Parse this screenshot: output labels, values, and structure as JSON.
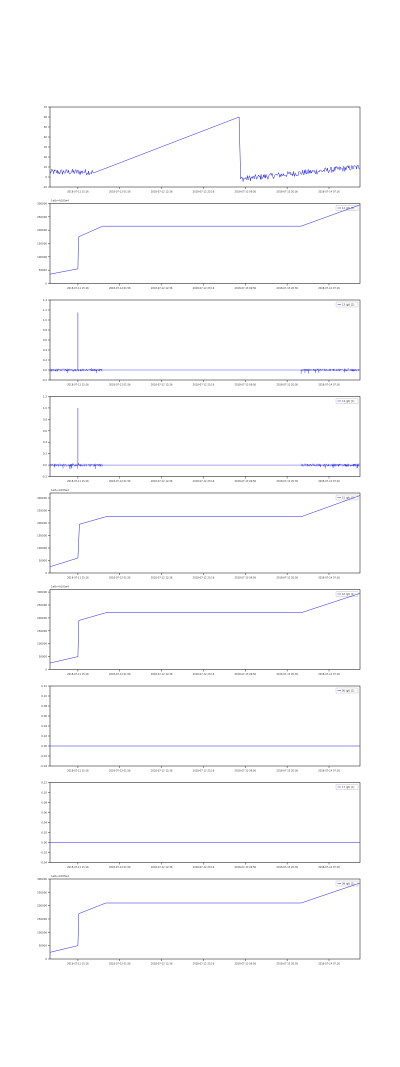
{
  "colors": {
    "series": "#2020ee",
    "axis": "#000000",
    "grid": "#cfcfcf",
    "text": "#333333"
  },
  "x_ticks": [
    "2018-07-11 15:16",
    "2018-07-12 01:56",
    "2018-07-12 12:36",
    "2018-07-12 23:16",
    "2018-07-13 09:56",
    "2018-07-13 20:36",
    "2018-07-14 07:16"
  ],
  "chart_data": [
    {
      "type": "line",
      "title": "",
      "xlabel": "",
      "ylabel": "",
      "y_ticks": [
        "-10",
        "0",
        "10",
        "20",
        "30",
        "40",
        "50",
        "60",
        "70"
      ],
      "ylim": [
        -10,
        70
      ],
      "legend": "",
      "offset_text": "",
      "grid": false,
      "series": [
        {
          "shape": "noisy-ramp",
          "points": [
            [
              0,
              5
            ],
            [
              0.14,
              4
            ],
            [
              0.61,
              60
            ],
            [
              0.615,
              -2
            ],
            [
              1,
              10
            ]
          ],
          "noise": 3
        }
      ]
    },
    {
      "type": "line",
      "title": "",
      "xlabel": "",
      "ylabel": "",
      "y_ticks": [
        "0",
        "50000",
        "100000",
        "150000",
        "200000",
        "250000",
        "300000"
      ],
      "ylim": [
        0,
        300000
      ],
      "legend": "12 (gt) [1]",
      "offset_text": "1e8+4.003e4",
      "grid": false,
      "series": [
        {
          "name": "12 (gt) [1]",
          "points": [
            [
              0,
              35000
            ],
            [
              0.09,
              55000
            ],
            [
              0.092,
              175000
            ],
            [
              0.17,
              215000
            ],
            [
              0.81,
              215000
            ],
            [
              1,
              295000
            ]
          ]
        }
      ]
    },
    {
      "type": "line",
      "title": "",
      "xlabel": "",
      "ylabel": "",
      "y_ticks": [
        "-0.2",
        "0.0",
        "0.2",
        "0.4",
        "0.6",
        "0.8",
        "1.0",
        "1.2",
        "1.4"
      ],
      "ylim": [
        -0.2,
        1.4
      ],
      "legend": "13 (gt) [1]",
      "offset_text": "",
      "grid": false,
      "series": [
        {
          "name": "13 (gt) [1]",
          "shape": "sparse-spikes",
          "segments": [
            [
              0,
              0.17
            ],
            [
              0.81,
              1
            ]
          ],
          "base": 0.0,
          "spike_at": 0.09,
          "spike_height": 1.15
        }
      ]
    },
    {
      "type": "line",
      "title": "",
      "xlabel": "",
      "ylabel": "",
      "y_ticks": [
        "-0.2",
        "0.0",
        "0.2",
        "0.4",
        "0.6",
        "0.8",
        "1.0",
        "1.2"
      ],
      "ylim": [
        -0.2,
        1.2
      ],
      "legend": "14 (gt) [1]",
      "offset_text": "",
      "grid": false,
      "series": [
        {
          "name": "14 (gt) [1]",
          "shape": "sparse-spikes",
          "segments": [
            [
              0,
              0.17
            ],
            [
              0.81,
              1
            ]
          ],
          "base": 0.0,
          "spike_at": 0.09,
          "spike_height": 1.0
        }
      ]
    },
    {
      "type": "line",
      "title": "",
      "xlabel": "",
      "ylabel": "",
      "y_ticks": [
        "0",
        "50000",
        "100000",
        "150000",
        "200000",
        "250000",
        "300000"
      ],
      "ylim": [
        0,
        320000
      ],
      "legend": "15 (gt) [1]",
      "offset_text": "1e8+4.003e4",
      "grid": false,
      "series": [
        {
          "name": "15 (gt) [1]",
          "points": [
            [
              0,
              25000
            ],
            [
              0.09,
              60000
            ],
            [
              0.095,
              195000
            ],
            [
              0.18,
              225000
            ],
            [
              0.81,
              225000
            ],
            [
              1,
              310000
            ]
          ]
        }
      ]
    },
    {
      "type": "line",
      "title": "",
      "xlabel": "",
      "ylabel": "",
      "y_ticks": [
        "0",
        "50000",
        "100000",
        "150000",
        "200000",
        "250000",
        "300000"
      ],
      "ylim": [
        0,
        310000
      ],
      "legend": "16 (gt) [1]",
      "offset_text": "1e8+4.003e4",
      "grid": false,
      "series": [
        {
          "name": "16 (gt) [1]",
          "points": [
            [
              0,
              25000
            ],
            [
              0.09,
              50000
            ],
            [
              0.093,
              190000
            ],
            [
              0.18,
              220000
            ],
            [
              0.81,
              220000
            ],
            [
              1,
              295000
            ]
          ]
        }
      ]
    },
    {
      "type": "line",
      "title": "",
      "xlabel": "",
      "ylabel": "",
      "y_ticks": [
        "-0.04",
        "-0.02",
        "0.00",
        "0.02",
        "0.04",
        "0.06",
        "0.08",
        "0.10",
        "0.12"
      ],
      "ylim": [
        -0.04,
        0.12
      ],
      "legend": "06 (gt) [1]",
      "offset_text": "",
      "grid": false,
      "series": [
        {
          "name": "06 (gt) [1]",
          "points": [
            [
              0,
              0
            ],
            [
              1,
              0
            ]
          ]
        }
      ]
    },
    {
      "type": "line",
      "title": "",
      "xlabel": "",
      "ylabel": "",
      "y_ticks": [
        "-0.04",
        "-0.02",
        "0.00",
        "0.02",
        "0.04",
        "0.06",
        "0.08",
        "0.10",
        "0.12"
      ],
      "ylim": [
        -0.04,
        0.12
      ],
      "legend": "17 (gt) [1]",
      "offset_text": "",
      "grid": false,
      "series": [
        {
          "name": "17 (gt) [1]",
          "points": [
            [
              0,
              0
            ],
            [
              1,
              0
            ]
          ]
        }
      ]
    },
    {
      "type": "line",
      "title": "",
      "xlabel": "",
      "ylabel": "",
      "y_ticks": [
        "0",
        "50000",
        "100000",
        "150000",
        "200000",
        "250000",
        "300000"
      ],
      "ylim": [
        0,
        300000
      ],
      "legend": "08 (gt) [1]",
      "offset_text": "1e8+4.003e4",
      "grid": false,
      "series": [
        {
          "name": "08 (gt) [1]",
          "points": [
            [
              0,
              25000
            ],
            [
              0.09,
              50000
            ],
            [
              0.093,
              170000
            ],
            [
              0.18,
              210000
            ],
            [
              0.81,
              210000
            ],
            [
              1,
              285000
            ]
          ]
        }
      ]
    }
  ]
}
